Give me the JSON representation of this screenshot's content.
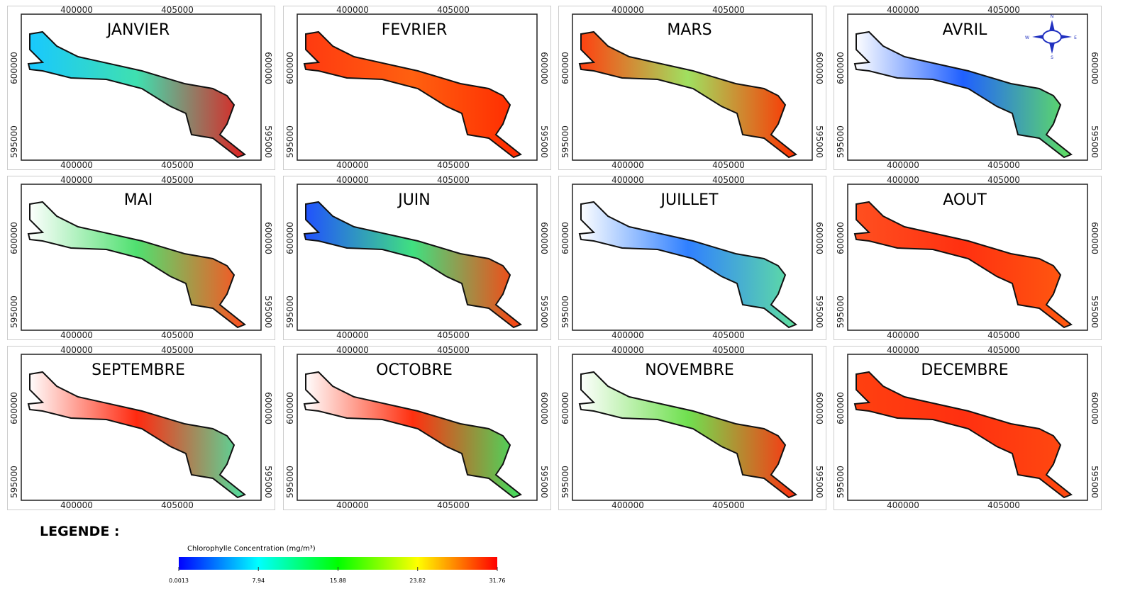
{
  "panels": [
    {
      "title": "JANVIER"
    },
    {
      "title": "FEVRIER"
    },
    {
      "title": "MARS"
    },
    {
      "title": "AVRIL"
    },
    {
      "title": "MAI"
    },
    {
      "title": "JUIN"
    },
    {
      "title": "JUILLET"
    },
    {
      "title": "AOUT"
    },
    {
      "title": "SEPTEMBRE"
    },
    {
      "title": "OCTOBRE"
    },
    {
      "title": "NOVEMBRE"
    },
    {
      "title": "DECEMBRE"
    }
  ],
  "axes": {
    "x_ticks": [
      "400000",
      "405000"
    ],
    "y_ticks": [
      "600000",
      "595000"
    ]
  },
  "compass": {
    "n": "N",
    "s": "S",
    "e": "E",
    "w": "W"
  },
  "legend": {
    "heading": "LEGENDE :",
    "title": "Chlorophylle Concentration (mg/m³)",
    "ticks": [
      0.0013,
      7.94,
      15.88,
      23.82,
      31.76
    ]
  }
}
